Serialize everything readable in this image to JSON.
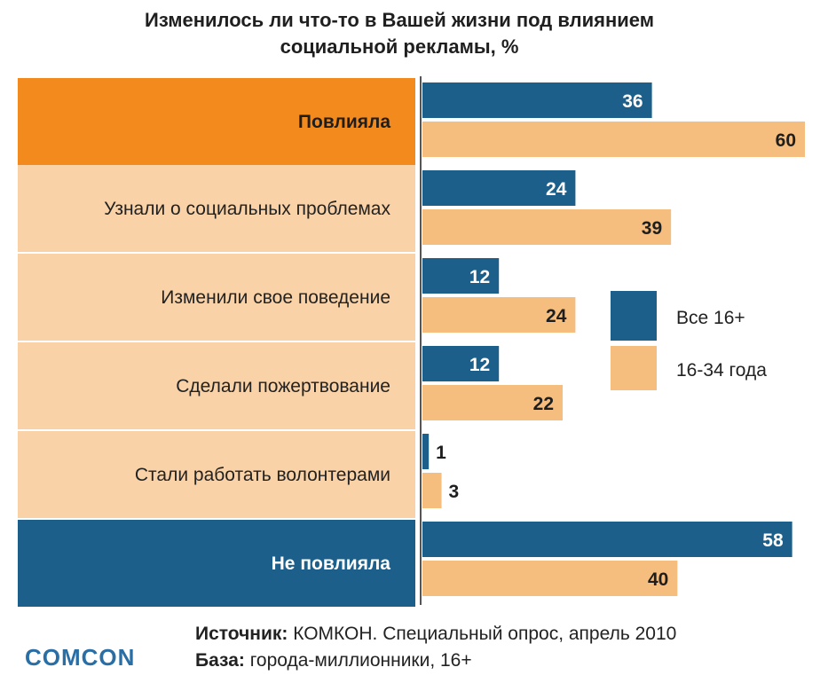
{
  "title_lines": [
    "Изменилось ли что-то в Вашей жизни под влиянием",
    "социальной рекламы, %"
  ],
  "colors": {
    "blue": "#1b5f8a",
    "orange": "#f6be7e",
    "orange_strong": "#f28a1d",
    "label_bg": "#f9d2a7"
  },
  "chart_data": {
    "type": "bar",
    "orientation": "horizontal",
    "title": "Изменилось ли что-то в Вашей жизни под влиянием социальной рекламы, %",
    "categories": [
      "Повлияла",
      "Узнали о социальных проблемах",
      "Изменили свое поведение",
      "Сделали пожертвование",
      "Стали работать волонтерами",
      "Не повлияла"
    ],
    "series": [
      {
        "name": "Все 16+",
        "values": [
          36,
          24,
          12,
          12,
          1,
          58
        ]
      },
      {
        "name": "16-34 года",
        "values": [
          60,
          39,
          24,
          22,
          3,
          40
        ]
      }
    ],
    "xlim": [
      0,
      60
    ],
    "grid": false,
    "legend": "right"
  },
  "footer": {
    "source_label": "Источник:",
    "source_text": " КОМКОН. Специальный опрос, апрель 2010",
    "base_label": "База:",
    "base_text": " города-миллионники, 16+"
  },
  "logo": "COMCON"
}
